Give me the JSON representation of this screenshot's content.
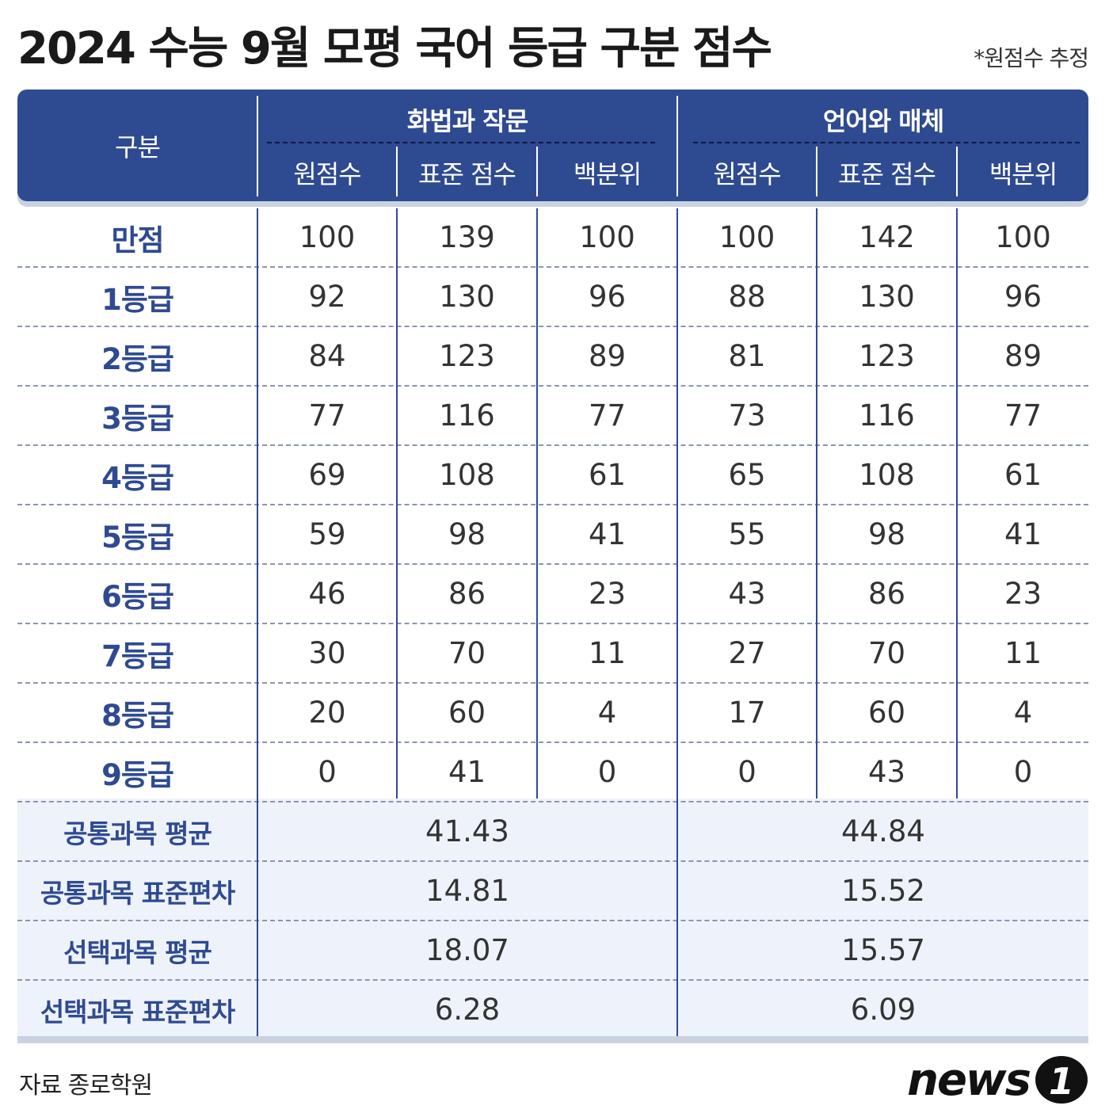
{
  "title": "2024 수능 9월 모평 국어 등급 구분 점수",
  "note": "*원점수 추정",
  "header": {
    "category_label": "구분",
    "groups": [
      "화법과 작문",
      "언어와 매체"
    ],
    "subcolumns": [
      "원점수",
      "표준 점수",
      "백분위",
      "원점수",
      "표준 점수",
      "백분위"
    ]
  },
  "rows": [
    {
      "label": "만점",
      "values": [
        "100",
        "139",
        "100",
        "100",
        "142",
        "100"
      ]
    },
    {
      "label": "1등급",
      "values": [
        "92",
        "130",
        "96",
        "88",
        "130",
        "96"
      ]
    },
    {
      "label": "2등급",
      "values": [
        "84",
        "123",
        "89",
        "81",
        "123",
        "89"
      ]
    },
    {
      "label": "3등급",
      "values": [
        "77",
        "116",
        "77",
        "73",
        "116",
        "77"
      ]
    },
    {
      "label": "4등급",
      "values": [
        "69",
        "108",
        "61",
        "65",
        "108",
        "61"
      ]
    },
    {
      "label": "5등급",
      "values": [
        "59",
        "98",
        "41",
        "55",
        "98",
        "41"
      ]
    },
    {
      "label": "6등급",
      "values": [
        "46",
        "86",
        "23",
        "43",
        "86",
        "23"
      ]
    },
    {
      "label": "7등급",
      "values": [
        "30",
        "70",
        "11",
        "27",
        "70",
        "11"
      ]
    },
    {
      "label": "8등급",
      "values": [
        "20",
        "60",
        "4",
        "17",
        "60",
        "4"
      ]
    },
    {
      "label": "9등급",
      "values": [
        "0",
        "41",
        "0",
        "0",
        "43",
        "0"
      ]
    }
  ],
  "stats": [
    {
      "label": "공통과목 평균",
      "values": [
        "41.43",
        "44.84"
      ]
    },
    {
      "label": "공통과목 표준편차",
      "values": [
        "14.81",
        "15.52"
      ]
    },
    {
      "label": "선택과목 평균",
      "values": [
        "18.07",
        "15.57"
      ]
    },
    {
      "label": "선택과목 표준편차",
      "values": [
        "6.28",
        "6.09"
      ]
    }
  ],
  "source": "자료 종로학원",
  "logo": {
    "text": "news",
    "mark": "1"
  },
  "colors": {
    "header_bg": "#2e4a91",
    "label_text": "#2e4a91",
    "stats_bg": "#eef2fa"
  }
}
